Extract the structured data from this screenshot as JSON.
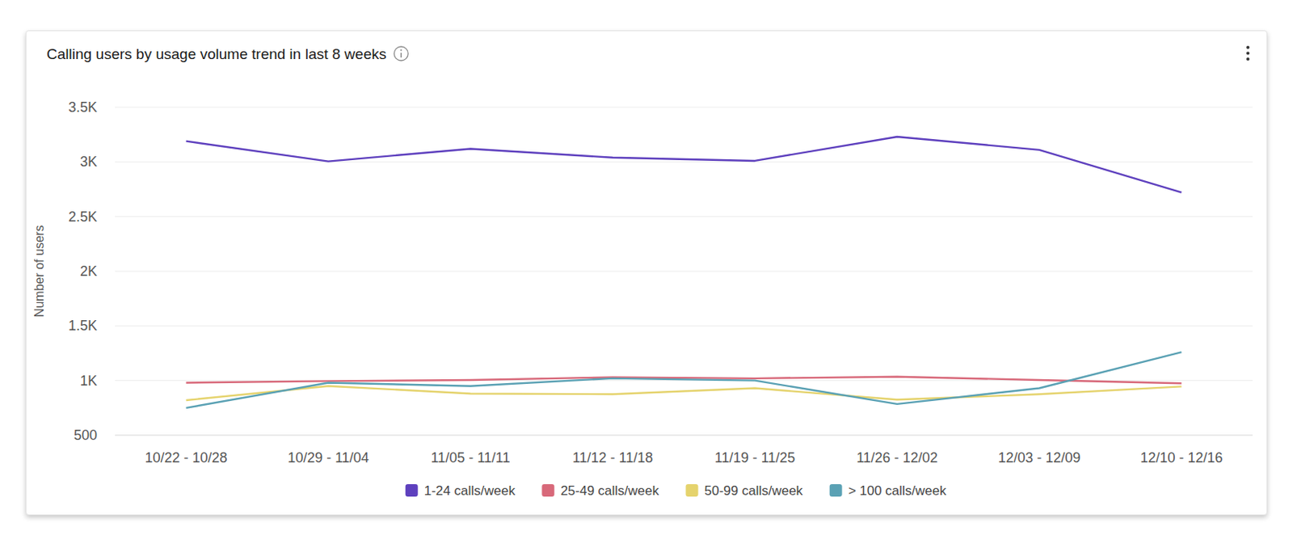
{
  "chart_data": {
    "type": "line",
    "title": "Calling users by usage volume trend in last 8 weeks",
    "y_label": "Number of users",
    "categories": [
      "10/22 - 10/28",
      "10/29 - 11/04",
      "11/05 - 11/11",
      "11/12 - 11/18",
      "11/19 - 11/25",
      "11/26 - 12/02",
      "12/03 - 12/09",
      "12/10 - 12/16"
    ],
    "series": [
      {
        "name": "1-24 calls/week",
        "color": "#5e40be",
        "values": [
          3190,
          3005,
          3120,
          3040,
          3010,
          3230,
          3110,
          2720
        ]
      },
      {
        "name": "25-49 calls/week",
        "color": "#d8697a",
        "values": [
          980,
          995,
          1005,
          1030,
          1020,
          1035,
          1005,
          975
        ]
      },
      {
        "name": "50-99 calls/week",
        "color": "#e5d36d",
        "values": [
          820,
          950,
          880,
          875,
          930,
          825,
          875,
          945
        ]
      },
      {
        "name": "> 100 calls/week",
        "color": "#5aa1b4",
        "values": [
          750,
          980,
          950,
          1020,
          1000,
          785,
          930,
          1260
        ]
      }
    ],
    "ylim": [
      500,
      3500
    ],
    "yticks": [
      500,
      {
        "value": 1000,
        "label": "1K"
      },
      {
        "value": 1500,
        "label": "1.5K"
      },
      {
        "value": 2000,
        "label": "2K"
      },
      {
        "value": 2500,
        "label": "2.5K"
      },
      {
        "value": 3000,
        "label": "3K"
      },
      {
        "value": 3500,
        "label": "3.5K"
      }
    ],
    "grid": true,
    "legend": "bottom"
  }
}
